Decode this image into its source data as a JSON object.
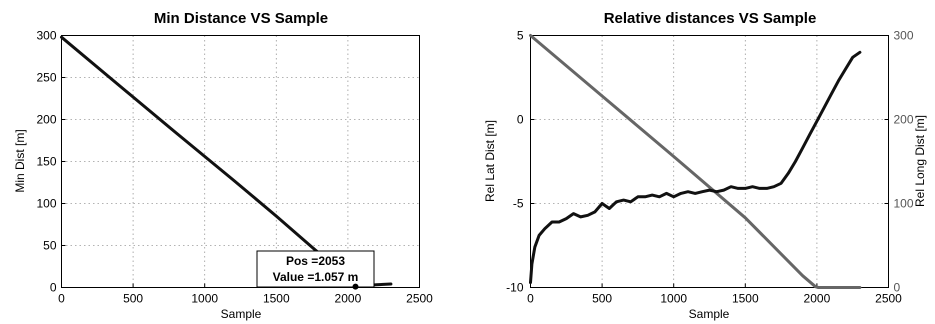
{
  "chart_data": [
    {
      "type": "line",
      "title": "Min Distance VS Sample",
      "xlabel": "Sample",
      "ylabel": "Min Dist [m]",
      "xlim": [
        0,
        2500
      ],
      "ylim": [
        0,
        300
      ],
      "xticks": [
        0,
        500,
        1000,
        1500,
        2000,
        2500
      ],
      "yticks": [
        0,
        50,
        100,
        150,
        200,
        250,
        300
      ],
      "grid": true,
      "series": [
        {
          "color": "#111111",
          "x": [
            0,
            400,
            800,
            1200,
            1500,
            1750,
            1900,
            2000,
            2053,
            2100,
            2200,
            2300
          ],
          "y": [
            298,
            241,
            184,
            128,
            85,
            48,
            26,
            10,
            1.057,
            2.2,
            3.2,
            4.2
          ]
        }
      ],
      "annotation": {
        "lines": [
          "Pos =2053",
          "Value =1.057 m"
        ],
        "x": 2053,
        "y": 1.057
      }
    },
    {
      "type": "line",
      "title": "Relative distances VS Sample",
      "xlabel": "Sample",
      "ylabel": "Rel Lat Dist [m]",
      "ylabel_right": "Rel Long Dist [m]",
      "xlim": [
        0,
        2500
      ],
      "ylim": [
        -10,
        5
      ],
      "ylim_right": [
        0,
        300
      ],
      "xticks": [
        0,
        500,
        1000,
        1500,
        2000,
        2500
      ],
      "yticks": [
        -10,
        -5,
        0,
        5
      ],
      "yticks_right": [
        0,
        100,
        200,
        300
      ],
      "grid": true,
      "series": [
        {
          "axis": "left",
          "color": "#111111",
          "x": [
            0,
            10,
            30,
            60,
            100,
            150,
            200,
            250,
            300,
            350,
            400,
            450,
            500,
            550,
            600,
            650,
            700,
            750,
            800,
            850,
            900,
            950,
            1000,
            1050,
            1100,
            1150,
            1200,
            1250,
            1300,
            1350,
            1400,
            1450,
            1500,
            1550,
            1600,
            1650,
            1700,
            1750,
            1800,
            1850,
            1900,
            1950,
            2000,
            2050,
            2100,
            2150,
            2200,
            2250,
            2300
          ],
          "y": [
            -9.7,
            -8.6,
            -7.6,
            -6.9,
            -6.5,
            -6.1,
            -6.1,
            -5.9,
            -5.6,
            -5.8,
            -5.7,
            -5.5,
            -5.0,
            -5.3,
            -4.9,
            -4.8,
            -4.9,
            -4.6,
            -4.6,
            -4.5,
            -4.6,
            -4.4,
            -4.6,
            -4.4,
            -4.3,
            -4.4,
            -4.3,
            -4.2,
            -4.3,
            -4.2,
            -4.0,
            -4.1,
            -4.1,
            -4.0,
            -4.1,
            -4.1,
            -4.0,
            -3.8,
            -3.2,
            -2.5,
            -1.7,
            -0.9,
            -0.1,
            0.7,
            1.5,
            2.3,
            3.0,
            3.7,
            4.0
          ]
        },
        {
          "axis": "right",
          "color": "#666666",
          "x": [
            0,
            500,
            1000,
            1500,
            1900,
            1990,
            2010,
            2050,
            2300
          ],
          "y": [
            300,
            228,
            156,
            83,
            14,
            1,
            0,
            0,
            0
          ]
        }
      ]
    }
  ]
}
